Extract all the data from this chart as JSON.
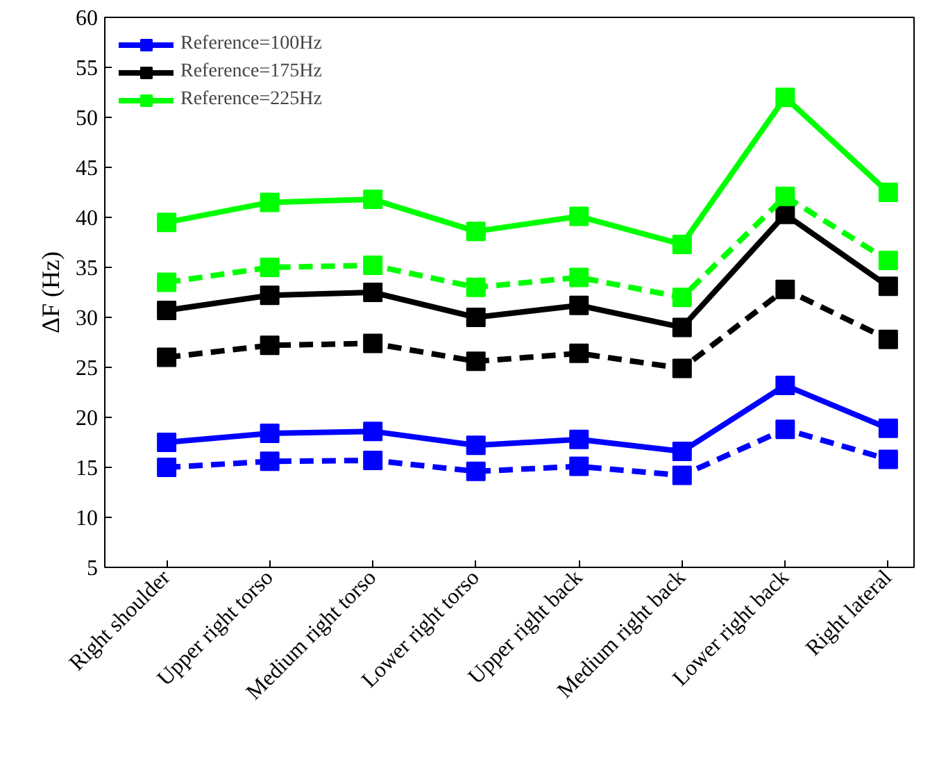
{
  "chart_data": {
    "type": "line",
    "ylabel": "ΔF (Hz)",
    "categories": [
      "Right shoulder",
      "Upper right torso",
      "Medium right torso",
      "Lower right torso",
      "Upper right back",
      "Medium right back",
      "Lower right back",
      "Right lateral"
    ],
    "ylim": [
      5,
      60
    ],
    "yticks": [
      5,
      10,
      15,
      20,
      25,
      30,
      35,
      40,
      45,
      50,
      55,
      60
    ],
    "grid": false,
    "legend": "top left",
    "marker": "square",
    "series": [
      {
        "name": "Reference=100Hz",
        "color": "#0000ff",
        "line_style": "solid",
        "values": [
          17.5,
          18.4,
          18.6,
          17.2,
          17.8,
          16.6,
          23.2,
          18.9
        ]
      },
      {
        "name": "Reference=175Hz",
        "color": "#000000",
        "line_style": "solid",
        "values": [
          30.7,
          32.2,
          32.5,
          30.0,
          31.2,
          29.0,
          40.3,
          33.1
        ]
      },
      {
        "name": "Reference=225Hz",
        "color": "#00ff00",
        "line_style": "solid",
        "values": [
          39.5,
          41.5,
          41.8,
          38.6,
          40.1,
          37.3,
          52.0,
          42.5
        ]
      },
      {
        "color": "#0000ff",
        "line_style": "dashed",
        "values": [
          15.0,
          15.6,
          15.7,
          14.6,
          15.1,
          14.2,
          18.8,
          15.8
        ]
      },
      {
        "color": "#000000",
        "line_style": "dashed",
        "values": [
          26.0,
          27.2,
          27.4,
          25.6,
          26.4,
          24.9,
          32.8,
          27.8
        ]
      },
      {
        "color": "#00ff00",
        "line_style": "dashed",
        "values": [
          33.5,
          35.0,
          35.2,
          33.0,
          34.0,
          32.0,
          42.1,
          35.7
        ]
      }
    ]
  }
}
